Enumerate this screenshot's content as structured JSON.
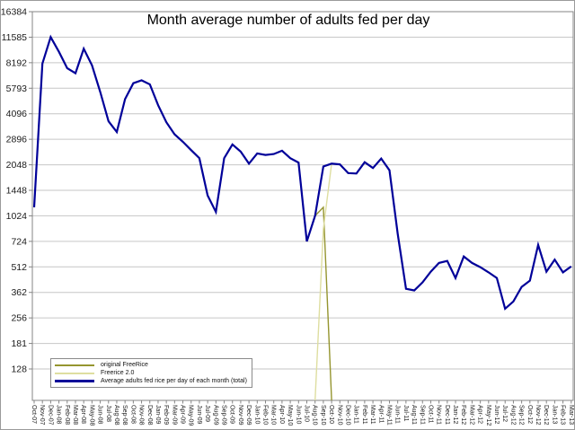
{
  "chart_data": {
    "type": "line",
    "title": "Month average number of adults fed per day",
    "y_scale": "log2",
    "ylim_top": 16384,
    "y_ticks": [
      16384,
      11585,
      8192,
      5793,
      4096,
      2896,
      2048,
      1448,
      1024,
      724,
      512,
      362,
      256,
      181,
      128
    ],
    "grid": true,
    "gridline_color": "#c6c6c6",
    "axis_color": "#848484",
    "tick_label_color": "#1a1a1a",
    "legend_position": "bottom-left",
    "categories": [
      "Oct-07",
      "Nov-07",
      "Dec-07",
      "Jan-08",
      "Feb-08",
      "Mar-08",
      "Apr-08",
      "May-08",
      "Jun-08",
      "Jul-08",
      "Aug-08",
      "Sep-08",
      "Oct-08",
      "Nov-08",
      "Dec-08",
      "Jan-09",
      "Feb-09",
      "Mar-09",
      "Apr-09",
      "May-09",
      "Jun-09",
      "Jul-09",
      "Aug-09",
      "Sep-09",
      "Oct-09",
      "Nov-09",
      "Dec-09",
      "Jan-10",
      "Feb-10",
      "Mar-10",
      "Apr-10",
      "May-10",
      "Jun-10",
      "Jul-10",
      "Aug-10",
      "Sep-10",
      "Oct-10",
      "Nov-10",
      "Dec-10",
      "Jan-11",
      "Feb-11",
      "Mar-11",
      "Apr-11",
      "May-11",
      "Jun-11",
      "Jul-11",
      "Aug-11",
      "Sep-11",
      "Oct-11",
      "Nov-11",
      "Dec-11",
      "Jan-12",
      "Feb-12",
      "Mar-12",
      "Apr-12",
      "May-12",
      "Jun-12",
      "Jul-12",
      "Aug-12",
      "Sep-12",
      "Oct-12",
      "Nov-12",
      "Dec-12",
      "Jan-13",
      "Feb-13",
      "Mar-13"
    ],
    "series": [
      {
        "name": "original FreeRice",
        "color": "#95952f",
        "line_width": 1.4,
        "values": [
          1150,
          8100,
          11600,
          9500,
          7600,
          7100,
          9900,
          7900,
          5500,
          3700,
          3200,
          5000,
          6200,
          6450,
          6100,
          4600,
          3650,
          3100,
          2800,
          2500,
          2240,
          1350,
          1080,
          2240,
          2700,
          2450,
          2080,
          2390,
          2340,
          2370,
          2480,
          2240,
          2110,
          724,
          1024,
          1150,
          0,
          null,
          null,
          null,
          null,
          null,
          null,
          null,
          null,
          null,
          null,
          null,
          null,
          null,
          null,
          null,
          null,
          null,
          null,
          null,
          null,
          null,
          null,
          null,
          null,
          null,
          null,
          null,
          null,
          null
        ]
      },
      {
        "name": "Freerice 2.0",
        "color": "#dedea0",
        "line_width": 1.4,
        "values": [
          null,
          null,
          null,
          null,
          null,
          null,
          null,
          null,
          null,
          null,
          null,
          null,
          null,
          null,
          null,
          null,
          null,
          null,
          null,
          null,
          null,
          null,
          null,
          null,
          null,
          null,
          null,
          null,
          null,
          null,
          null,
          null,
          null,
          null,
          0,
          855,
          2080,
          2060,
          1830,
          1820,
          2120,
          1960,
          2230,
          1900,
          800,
          380,
          372,
          415,
          480,
          540,
          555,
          440,
          590,
          540,
          510,
          475,
          440,
          290,
          320,
          390,
          425,
          690,
          480,
          565,
          475,
          515
        ]
      },
      {
        "name": "Average adults fed rice per day of each month (total)",
        "color": "#000099",
        "line_width": 2.2,
        "values": [
          1150,
          8100,
          11600,
          9500,
          7600,
          7100,
          9900,
          7900,
          5500,
          3700,
          3200,
          5000,
          6200,
          6450,
          6100,
          4600,
          3650,
          3100,
          2800,
          2500,
          2240,
          1350,
          1080,
          2240,
          2700,
          2450,
          2080,
          2390,
          2340,
          2370,
          2480,
          2240,
          2110,
          724,
          1024,
          2000,
          2080,
          2060,
          1830,
          1820,
          2120,
          1960,
          2230,
          1900,
          800,
          380,
          372,
          415,
          480,
          540,
          555,
          440,
          590,
          540,
          510,
          475,
          440,
          290,
          320,
          390,
          425,
          690,
          480,
          565,
          475,
          515
        ]
      }
    ]
  }
}
